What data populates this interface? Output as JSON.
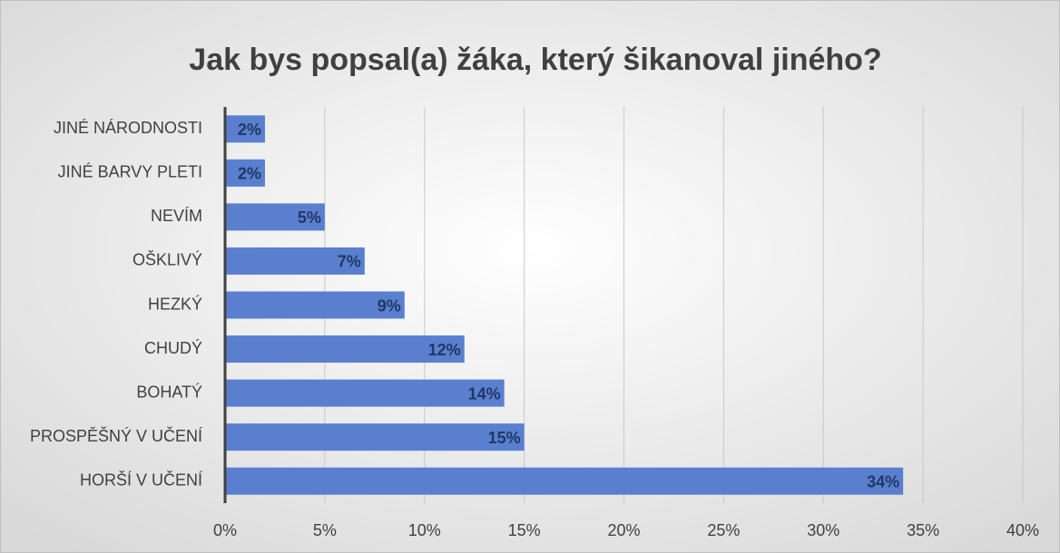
{
  "chart_data": {
    "type": "bar",
    "orientation": "horizontal",
    "title": "Jak bys popsal(a) žáka, který šikanoval jiného?",
    "categories": [
      "JINÉ NÁRODNOSTI",
      "JINÉ BARVY PLETI",
      "NEVÍM",
      "OŠKLIVÝ",
      "HEZKÝ",
      "CHUDÝ",
      "BOHATÝ",
      "PROSPĚŠNÝ V UČENÍ",
      "HORŠÍ V UČENÍ"
    ],
    "values": [
      2,
      2,
      5,
      7,
      9,
      12,
      14,
      15,
      34
    ],
    "value_labels": [
      "2%",
      "2%",
      "5%",
      "7%",
      "9%",
      "12%",
      "14%",
      "15%",
      "34%"
    ],
    "color": "#5b7fcf",
    "xlim": [
      0,
      40
    ],
    "xticks": [
      {
        "value": 0,
        "label": "0%"
      },
      {
        "value": 5,
        "label": "5%"
      },
      {
        "value": 10,
        "label": "10%"
      },
      {
        "value": 15,
        "label": "15%"
      },
      {
        "value": 20,
        "label": "20%"
      },
      {
        "value": 25,
        "label": "25%"
      },
      {
        "value": 30,
        "label": "30%"
      },
      {
        "value": 35,
        "label": "35%"
      },
      {
        "value": 40,
        "label": "40%"
      }
    ],
    "grid": true
  }
}
